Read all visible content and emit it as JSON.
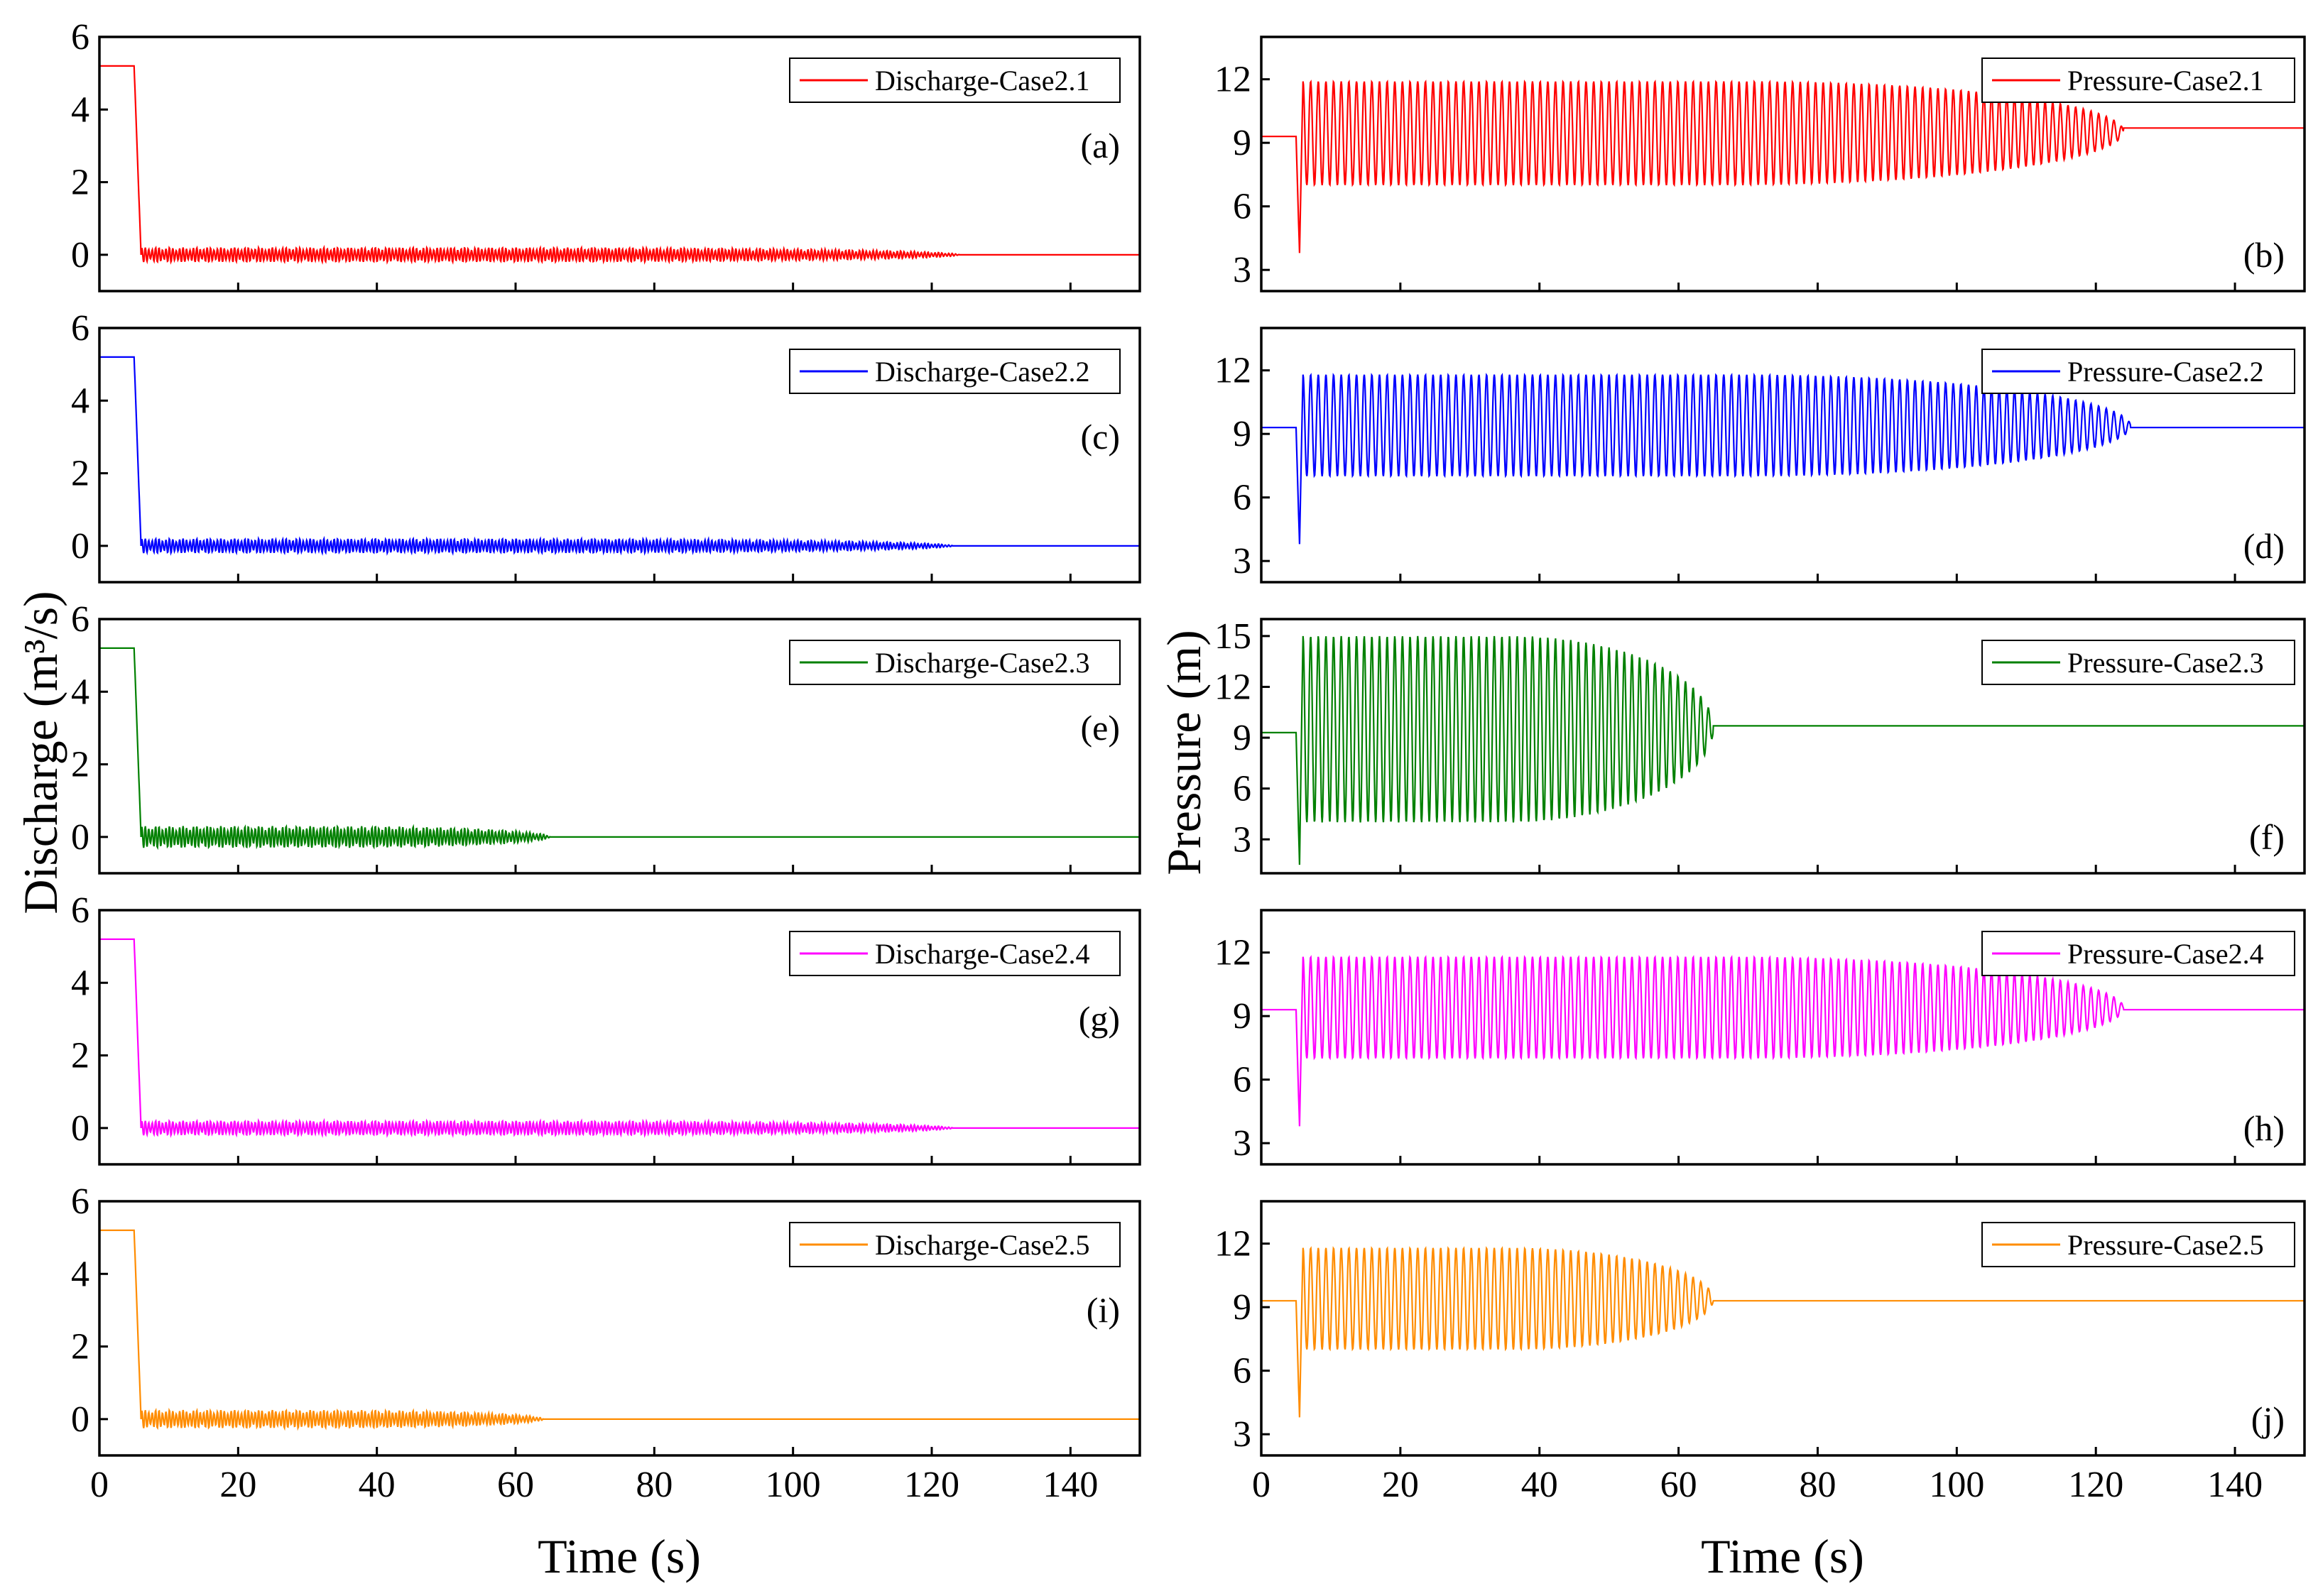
{
  "figure": {
    "left_ylabel": "Discharge (m³/s)",
    "right_ylabel": "Pressure (m)",
    "xlabel": "Time (s)"
  },
  "chart_data": [
    {
      "type": "line",
      "panel_label": "(a)",
      "column": "left",
      "legend": "Discharge-Case2.1",
      "color": "#ff0000",
      "xlim": [
        0,
        150
      ],
      "ylim": [
        -1,
        6
      ],
      "yticks": [
        0,
        2,
        4,
        6
      ],
      "xticks": [
        0,
        20,
        40,
        60,
        80,
        100,
        120,
        140
      ],
      "series": [
        {
          "name": "Discharge-Case2.1",
          "kind": "discharge",
          "initial": 5.2,
          "valve_start": 5,
          "valve_end": 6,
          "osc_amplitude": 0.2,
          "osc_period": 1.1,
          "settle_time": 124,
          "final": 0.0
        }
      ]
    },
    {
      "type": "line",
      "panel_label": "(b)",
      "column": "right",
      "legend": "Pressure-Case2.1",
      "color": "#ff0000",
      "xlim": [
        0,
        150
      ],
      "ylim": [
        2,
        14
      ],
      "yticks": [
        3,
        6,
        9,
        12
      ],
      "xticks": [
        0,
        20,
        40,
        60,
        80,
        100,
        120,
        140
      ],
      "series": [
        {
          "name": "Pressure-Case2.1",
          "kind": "pressure",
          "initial": 9.3,
          "valve_start": 5,
          "dip_min": 3.8,
          "osc_max": 11.9,
          "osc_min": 7.0,
          "osc_period": 1.1,
          "settle_time": 124,
          "final": 9.7
        }
      ]
    },
    {
      "type": "line",
      "panel_label": "(c)",
      "column": "left",
      "legend": "Discharge-Case2.2",
      "color": "#0000ff",
      "xlim": [
        0,
        150
      ],
      "ylim": [
        -1,
        6
      ],
      "yticks": [
        0,
        2,
        4,
        6
      ],
      "xticks": [
        0,
        20,
        40,
        60,
        80,
        100,
        120,
        140
      ],
      "series": [
        {
          "name": "Discharge-Case2.2",
          "kind": "discharge",
          "initial": 5.2,
          "valve_start": 5,
          "valve_end": 6,
          "osc_amplitude": 0.2,
          "osc_period": 1.1,
          "settle_time": 123,
          "final": 0.0
        }
      ]
    },
    {
      "type": "line",
      "panel_label": "(d)",
      "column": "right",
      "legend": "Pressure-Case2.2",
      "color": "#0000ff",
      "xlim": [
        0,
        150
      ],
      "ylim": [
        2,
        14
      ],
      "yticks": [
        3,
        6,
        9,
        12
      ],
      "xticks": [
        0,
        20,
        40,
        60,
        80,
        100,
        120,
        140
      ],
      "series": [
        {
          "name": "Pressure-Case2.2",
          "kind": "pressure",
          "initial": 9.3,
          "valve_start": 5,
          "dip_min": 3.8,
          "osc_max": 11.8,
          "osc_min": 7.0,
          "osc_period": 1.1,
          "settle_time": 125,
          "final": 9.3
        }
      ]
    },
    {
      "type": "line",
      "panel_label": "(e)",
      "column": "left",
      "legend": "Discharge-Case2.3",
      "color": "#008000",
      "xlim": [
        0,
        150
      ],
      "ylim": [
        -1,
        6
      ],
      "yticks": [
        0,
        2,
        4,
        6
      ],
      "xticks": [
        0,
        20,
        40,
        60,
        80,
        100,
        120,
        140
      ],
      "series": [
        {
          "name": "Discharge-Case2.3",
          "kind": "discharge",
          "initial": 5.2,
          "valve_start": 5,
          "valve_end": 6,
          "osc_amplitude": 0.3,
          "osc_period": 1.1,
          "settle_time": 65,
          "final": 0.0
        }
      ]
    },
    {
      "type": "line",
      "panel_label": "(f)",
      "column": "right",
      "legend": "Pressure-Case2.3",
      "color": "#008000",
      "xlim": [
        0,
        150
      ],
      "ylim": [
        1,
        16
      ],
      "yticks": [
        3,
        6,
        9,
        12,
        15
      ],
      "xticks": [
        0,
        20,
        40,
        60,
        80,
        100,
        120,
        140
      ],
      "series": [
        {
          "name": "Pressure-Case2.3",
          "kind": "pressure",
          "initial": 9.3,
          "valve_start": 5,
          "dip_min": 1.5,
          "osc_max": 15.0,
          "osc_min": 4.0,
          "osc_period": 1.1,
          "settle_time": 65,
          "final": 9.7
        }
      ]
    },
    {
      "type": "line",
      "panel_label": "(g)",
      "column": "left",
      "legend": "Discharge-Case2.4",
      "color": "#ff00ff",
      "xlim": [
        0,
        150
      ],
      "ylim": [
        -1,
        6
      ],
      "yticks": [
        0,
        2,
        4,
        6
      ],
      "xticks": [
        0,
        20,
        40,
        60,
        80,
        100,
        120,
        140
      ],
      "series": [
        {
          "name": "Discharge-Case2.4",
          "kind": "discharge",
          "initial": 5.2,
          "valve_start": 5,
          "valve_end": 6,
          "osc_amplitude": 0.2,
          "osc_period": 1.1,
          "settle_time": 123,
          "final": 0.0
        }
      ]
    },
    {
      "type": "line",
      "panel_label": "(h)",
      "column": "right",
      "legend": "Pressure-Case2.4",
      "color": "#ff00ff",
      "xlim": [
        0,
        150
      ],
      "ylim": [
        2,
        14
      ],
      "yticks": [
        3,
        6,
        9,
        12
      ],
      "xticks": [
        0,
        20,
        40,
        60,
        80,
        100,
        120,
        140
      ],
      "series": [
        {
          "name": "Pressure-Case2.4",
          "kind": "pressure",
          "initial": 9.3,
          "valve_start": 5,
          "dip_min": 3.8,
          "osc_max": 11.8,
          "osc_min": 7.0,
          "osc_period": 1.1,
          "settle_time": 124,
          "final": 9.3
        }
      ]
    },
    {
      "type": "line",
      "panel_label": "(i)",
      "column": "left",
      "legend": "Discharge-Case2.5",
      "color": "#ff8c00",
      "xlim": [
        0,
        150
      ],
      "ylim": [
        -1,
        6
      ],
      "yticks": [
        0,
        2,
        4,
        6
      ],
      "xticks": [
        0,
        20,
        40,
        60,
        80,
        100,
        120,
        140
      ],
      "series": [
        {
          "name": "Discharge-Case2.5",
          "kind": "discharge",
          "initial": 5.2,
          "valve_start": 5,
          "valve_end": 6,
          "osc_amplitude": 0.25,
          "osc_period": 1.1,
          "settle_time": 64,
          "final": 0.0
        }
      ]
    },
    {
      "type": "line",
      "panel_label": "(j)",
      "column": "right",
      "legend": "Pressure-Case2.5",
      "color": "#ff8c00",
      "xlim": [
        0,
        150
      ],
      "ylim": [
        2,
        14
      ],
      "yticks": [
        3,
        6,
        9,
        12
      ],
      "xticks": [
        0,
        20,
        40,
        60,
        80,
        100,
        120,
        140
      ],
      "series": [
        {
          "name": "Pressure-Case2.5",
          "kind": "pressure",
          "initial": 9.3,
          "valve_start": 5,
          "dip_min": 3.8,
          "osc_max": 11.8,
          "osc_min": 7.0,
          "osc_period": 1.1,
          "settle_time": 65,
          "final": 9.3
        }
      ]
    }
  ]
}
